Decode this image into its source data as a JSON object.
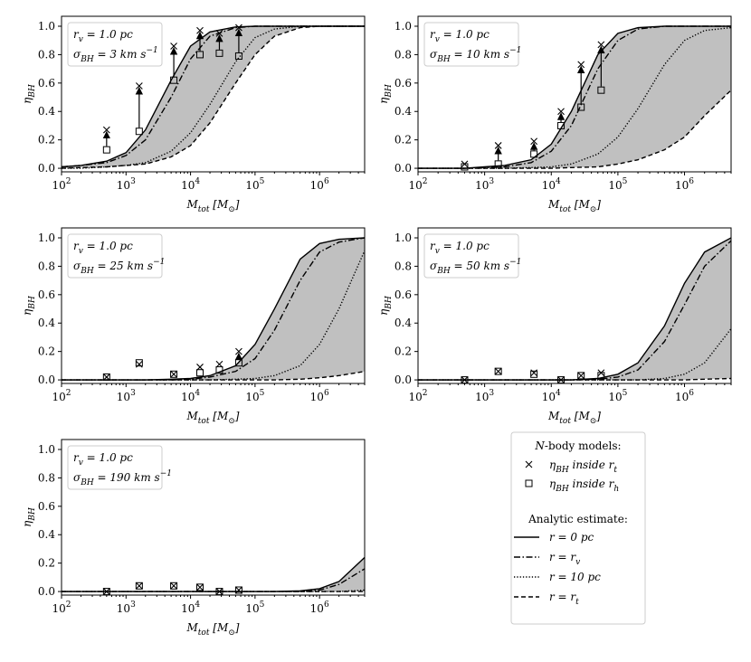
{
  "chart_data": [
    {
      "type": "line",
      "annotation": [
        "r_{v} = 1.0 pc",
        "σ_{BH} = 3 km s^{−1}"
      ],
      "xlabel": "M_{tot} [M_{⊙}]",
      "ylabel": "η_{BH}",
      "log_x": true,
      "shade": "#c0c0c0",
      "xlim": [
        100,
        5000000
      ],
      "ylim": [
        -0.025,
        1.07
      ],
      "xticks": [
        {
          "value": 100,
          "label": "10^{2}"
        },
        {
          "value": 1000,
          "label": "10^{3}"
        },
        {
          "value": 10000,
          "label": "10^{4}"
        },
        {
          "value": 100000,
          "label": "10^{5}"
        },
        {
          "value": 1000000,
          "label": "10^{6}"
        }
      ],
      "yticks": [
        {
          "value": 0,
          "label": "0.0"
        },
        {
          "value": 0.2,
          "label": "0.2"
        },
        {
          "value": 0.4,
          "label": "0.4"
        },
        {
          "value": 0.6,
          "label": "0.6"
        },
        {
          "value": 0.8,
          "label": "0.8"
        },
        {
          "value": 1,
          "label": "1.0"
        }
      ],
      "x": [
        100,
        200,
        500,
        1000,
        2000,
        5000,
        10000,
        20000,
        50000,
        100000,
        200000,
        500000,
        1000000,
        2000000,
        5000000
      ],
      "series": [
        {
          "style": "solid",
          "color": "#000000",
          "values": [
            0.01,
            0.02,
            0.05,
            0.11,
            0.27,
            0.62,
            0.86,
            0.96,
            0.995,
            1,
            1,
            1,
            1,
            1,
            1
          ]
        },
        {
          "style": "dashdot",
          "color": "#000000",
          "values": [
            0.01,
            0.02,
            0.04,
            0.09,
            0.2,
            0.5,
            0.77,
            0.93,
            0.99,
            1,
            1,
            1,
            1,
            1,
            1
          ]
        },
        {
          "style": "dotted",
          "color": "#000000",
          "values": [
            0,
            0,
            0.01,
            0.02,
            0.04,
            0.12,
            0.25,
            0.45,
            0.75,
            0.92,
            0.98,
            1,
            1,
            1,
            1
          ]
        },
        {
          "style": "dashed",
          "color": "#000000",
          "values": [
            0,
            0.005,
            0.01,
            0.02,
            0.03,
            0.08,
            0.16,
            0.32,
            0.6,
            0.8,
            0.93,
            0.99,
            1,
            1,
            1
          ]
        }
      ],
      "nbody": {
        "x": [
          500,
          1600,
          5500,
          14000,
          28000,
          56000
        ],
        "inside_rt": [
          0.27,
          0.58,
          0.86,
          0.97,
          0.95,
          0.99
        ],
        "inside_rh": [
          0.13,
          0.26,
          0.62,
          0.8,
          0.81,
          0.79
        ]
      }
    },
    {
      "type": "line",
      "annotation": [
        "r_{v} = 1.0 pc",
        "σ_{BH} = 10 km s^{−1}"
      ],
      "xlabel": "M_{tot} [M_{⊙}]",
      "ylabel": "η_{BH}",
      "log_x": true,
      "shade": "#c0c0c0",
      "xlim": [
        100,
        5000000
      ],
      "ylim": [
        -0.025,
        1.07
      ],
      "xticks": [
        {
          "value": 100,
          "label": "10^{2}"
        },
        {
          "value": 1000,
          "label": "10^{3}"
        },
        {
          "value": 10000,
          "label": "10^{4}"
        },
        {
          "value": 100000,
          "label": "10^{5}"
        },
        {
          "value": 1000000,
          "label": "10^{6}"
        }
      ],
      "yticks": [
        {
          "value": 0,
          "label": "0.0"
        },
        {
          "value": 0.2,
          "label": "0.2"
        },
        {
          "value": 0.4,
          "label": "0.4"
        },
        {
          "value": 0.6,
          "label": "0.6"
        },
        {
          "value": 0.8,
          "label": "0.8"
        },
        {
          "value": 1,
          "label": "1.0"
        }
      ],
      "x": [
        100,
        200,
        500,
        1000,
        2000,
        5000,
        10000,
        20000,
        50000,
        100000,
        200000,
        500000,
        1000000,
        2000000,
        5000000
      ],
      "series": [
        {
          "style": "solid",
          "color": "#000000",
          "values": [
            0,
            0,
            0,
            0.01,
            0.02,
            0.06,
            0.17,
            0.4,
            0.8,
            0.95,
            0.99,
            1,
            1,
            1,
            1
          ]
        },
        {
          "style": "dashdot",
          "color": "#000000",
          "values": [
            0,
            0,
            0,
            0.005,
            0.01,
            0.04,
            0.12,
            0.3,
            0.7,
            0.9,
            0.98,
            1,
            1,
            1,
            1
          ]
        },
        {
          "style": "dotted",
          "color": "#000000",
          "values": [
            0,
            0,
            0,
            0,
            0,
            0.005,
            0.01,
            0.03,
            0.1,
            0.22,
            0.42,
            0.73,
            0.9,
            0.97,
            0.99
          ]
        },
        {
          "style": "dashed",
          "color": "#000000",
          "values": [
            0,
            0,
            0,
            0,
            0,
            0,
            0,
            0.005,
            0.01,
            0.03,
            0.06,
            0.13,
            0.22,
            0.37,
            0.55
          ]
        }
      ],
      "nbody": {
        "x": [
          500,
          1600,
          5500,
          14000,
          28000,
          56000
        ],
        "inside_rt": [
          0.03,
          0.16,
          0.19,
          0.4,
          0.73,
          0.87
        ],
        "inside_rh": [
          0.01,
          0.03,
          0.1,
          0.3,
          0.43,
          0.55
        ]
      }
    },
    {
      "type": "line",
      "annotation": [
        "r_{v} = 1.0 pc",
        "σ_{BH} = 25 km s^{−1}"
      ],
      "xlabel": "M_{tot} [M_{⊙}]",
      "ylabel": "η_{BH}",
      "log_x": true,
      "shade": "#c0c0c0",
      "xlim": [
        100,
        5000000
      ],
      "ylim": [
        -0.025,
        1.07
      ],
      "xticks": [
        {
          "value": 100,
          "label": "10^{2}"
        },
        {
          "value": 1000,
          "label": "10^{3}"
        },
        {
          "value": 10000,
          "label": "10^{4}"
        },
        {
          "value": 100000,
          "label": "10^{5}"
        },
        {
          "value": 1000000,
          "label": "10^{6}"
        }
      ],
      "yticks": [
        {
          "value": 0,
          "label": "0.0"
        },
        {
          "value": 0.2,
          "label": "0.2"
        },
        {
          "value": 0.4,
          "label": "0.4"
        },
        {
          "value": 0.6,
          "label": "0.6"
        },
        {
          "value": 0.8,
          "label": "0.8"
        },
        {
          "value": 1,
          "label": "1.0"
        }
      ],
      "x": [
        100,
        200,
        500,
        1000,
        2000,
        5000,
        10000,
        20000,
        50000,
        100000,
        200000,
        500000,
        1000000,
        2000000,
        5000000
      ],
      "series": [
        {
          "style": "solid",
          "color": "#000000",
          "values": [
            0,
            0,
            0,
            0,
            0,
            0.005,
            0.01,
            0.03,
            0.1,
            0.25,
            0.5,
            0.85,
            0.96,
            0.99,
            1
          ]
        },
        {
          "style": "dashdot",
          "color": "#000000",
          "values": [
            0,
            0,
            0,
            0,
            0,
            0,
            0.005,
            0.02,
            0.06,
            0.15,
            0.35,
            0.7,
            0.9,
            0.97,
            1
          ]
        },
        {
          "style": "dotted",
          "color": "#000000",
          "values": [
            0,
            0,
            0,
            0,
            0,
            0,
            0,
            0,
            0.005,
            0.01,
            0.03,
            0.1,
            0.25,
            0.5,
            0.91
          ]
        },
        {
          "style": "dashed",
          "color": "#000000",
          "values": [
            0,
            0,
            0,
            0,
            0,
            0,
            0,
            0,
            0,
            0,
            0,
            0.005,
            0.015,
            0.03,
            0.06
          ]
        }
      ],
      "nbody": {
        "x": [
          500,
          1600,
          5500,
          14000,
          28000,
          56000
        ],
        "inside_rt": [
          0.02,
          0.11,
          0.04,
          0.09,
          0.11,
          0.2
        ],
        "inside_rh": [
          0.02,
          0.12,
          0.04,
          0.05,
          0.07,
          0.12
        ]
      }
    },
    {
      "type": "line",
      "annotation": [
        "r_{v} = 1.0 pc",
        "σ_{BH} = 50 km s^{−1}"
      ],
      "xlabel": "M_{tot} [M_{⊙}]",
      "ylabel": "η_{BH}",
      "log_x": true,
      "shade": "#c0c0c0",
      "xlim": [
        100,
        5000000
      ],
      "ylim": [
        -0.025,
        1.07
      ],
      "xticks": [
        {
          "value": 100,
          "label": "10^{2}"
        },
        {
          "value": 1000,
          "label": "10^{3}"
        },
        {
          "value": 10000,
          "label": "10^{4}"
        },
        {
          "value": 100000,
          "label": "10^{5}"
        },
        {
          "value": 1000000,
          "label": "10^{6}"
        }
      ],
      "yticks": [
        {
          "value": 0,
          "label": "0.0"
        },
        {
          "value": 0.2,
          "label": "0.2"
        },
        {
          "value": 0.4,
          "label": "0.4"
        },
        {
          "value": 0.6,
          "label": "0.6"
        },
        {
          "value": 0.8,
          "label": "0.8"
        },
        {
          "value": 1,
          "label": "1.0"
        }
      ],
      "x": [
        100,
        200,
        500,
        1000,
        2000,
        5000,
        10000,
        20000,
        50000,
        100000,
        200000,
        500000,
        1000000,
        2000000,
        5000000
      ],
      "series": [
        {
          "style": "solid",
          "color": "#000000",
          "values": [
            0,
            0,
            0,
            0,
            0,
            0,
            0,
            0,
            0.01,
            0.04,
            0.12,
            0.38,
            0.68,
            0.9,
            1
          ]
        },
        {
          "style": "dashdot",
          "color": "#000000",
          "values": [
            0,
            0,
            0,
            0,
            0,
            0,
            0,
            0,
            0.005,
            0.02,
            0.07,
            0.27,
            0.53,
            0.8,
            0.98
          ]
        },
        {
          "style": "dotted",
          "color": "#000000",
          "values": [
            0,
            0,
            0,
            0,
            0,
            0,
            0,
            0,
            0,
            0,
            0,
            0.01,
            0.04,
            0.12,
            0.36
          ]
        },
        {
          "style": "dashed",
          "color": "#000000",
          "values": [
            0,
            0,
            0,
            0,
            0,
            0,
            0,
            0,
            0,
            0,
            0,
            0,
            0,
            0.005,
            0.01
          ]
        }
      ],
      "nbody": {
        "x": [
          500,
          1600,
          5500,
          14000,
          28000,
          56000
        ],
        "inside_rt": [
          0,
          0.06,
          0.05,
          0,
          0.03,
          0.05
        ],
        "inside_rh": [
          0,
          0.06,
          0.04,
          0,
          0.03,
          0.03
        ]
      }
    },
    {
      "type": "line",
      "annotation": [
        "r_{v} = 1.0 pc",
        "σ_{BH} = 190 km s^{−1}"
      ],
      "xlabel": "M_{tot} [M_{⊙}]",
      "ylabel": "η_{BH}",
      "log_x": true,
      "shade": "#c0c0c0",
      "xlim": [
        100,
        5000000
      ],
      "ylim": [
        -0.025,
        1.07
      ],
      "xticks": [
        {
          "value": 100,
          "label": "10^{2}"
        },
        {
          "value": 1000,
          "label": "10^{3}"
        },
        {
          "value": 10000,
          "label": "10^{4}"
        },
        {
          "value": 100000,
          "label": "10^{5}"
        },
        {
          "value": 1000000,
          "label": "10^{6}"
        }
      ],
      "yticks": [
        {
          "value": 0,
          "label": "0.0"
        },
        {
          "value": 0.2,
          "label": "0.2"
        },
        {
          "value": 0.4,
          "label": "0.4"
        },
        {
          "value": 0.6,
          "label": "0.6"
        },
        {
          "value": 0.8,
          "label": "0.8"
        },
        {
          "value": 1,
          "label": "1.0"
        }
      ],
      "x": [
        100,
        200,
        500,
        1000,
        2000,
        5000,
        10000,
        20000,
        50000,
        100000,
        200000,
        500000,
        1000000,
        2000000,
        5000000
      ],
      "series": [
        {
          "style": "solid",
          "color": "#000000",
          "values": [
            0,
            0,
            0,
            0,
            0,
            0,
            0,
            0,
            0,
            0,
            0,
            0.005,
            0.02,
            0.07,
            0.24
          ]
        },
        {
          "style": "dashdot",
          "color": "#000000",
          "values": [
            0,
            0,
            0,
            0,
            0,
            0,
            0,
            0,
            0,
            0,
            0,
            0,
            0.01,
            0.05,
            0.16
          ]
        },
        {
          "style": "dotted",
          "color": "#000000",
          "values": [
            0,
            0,
            0,
            0,
            0,
            0,
            0,
            0,
            0,
            0,
            0,
            0,
            0,
            0,
            0.01
          ]
        },
        {
          "style": "dashed",
          "color": "#000000",
          "values": [
            0,
            0,
            0,
            0,
            0,
            0,
            0,
            0,
            0,
            0,
            0,
            0,
            0,
            0,
            0
          ]
        }
      ],
      "nbody": {
        "x": [
          500,
          1600,
          5500,
          14000,
          28000,
          56000
        ],
        "inside_rt": [
          0,
          0.04,
          0.04,
          0.03,
          0,
          0.01
        ],
        "inside_rh": [
          0,
          0.04,
          0.04,
          0.03,
          0,
          0.01
        ]
      }
    }
  ],
  "legend": {
    "nbody_title": "_{N}-body models:",
    "inside_rt": "η_{BH} inside r_{t}",
    "inside_rh": "η_{BH} inside r_{h}",
    "analytic_title": "Analytic estimate:",
    "lines": [
      "r = 0 pc",
      "r = r_{v}",
      "r = 10 pc",
      "r = r_{t}"
    ]
  }
}
